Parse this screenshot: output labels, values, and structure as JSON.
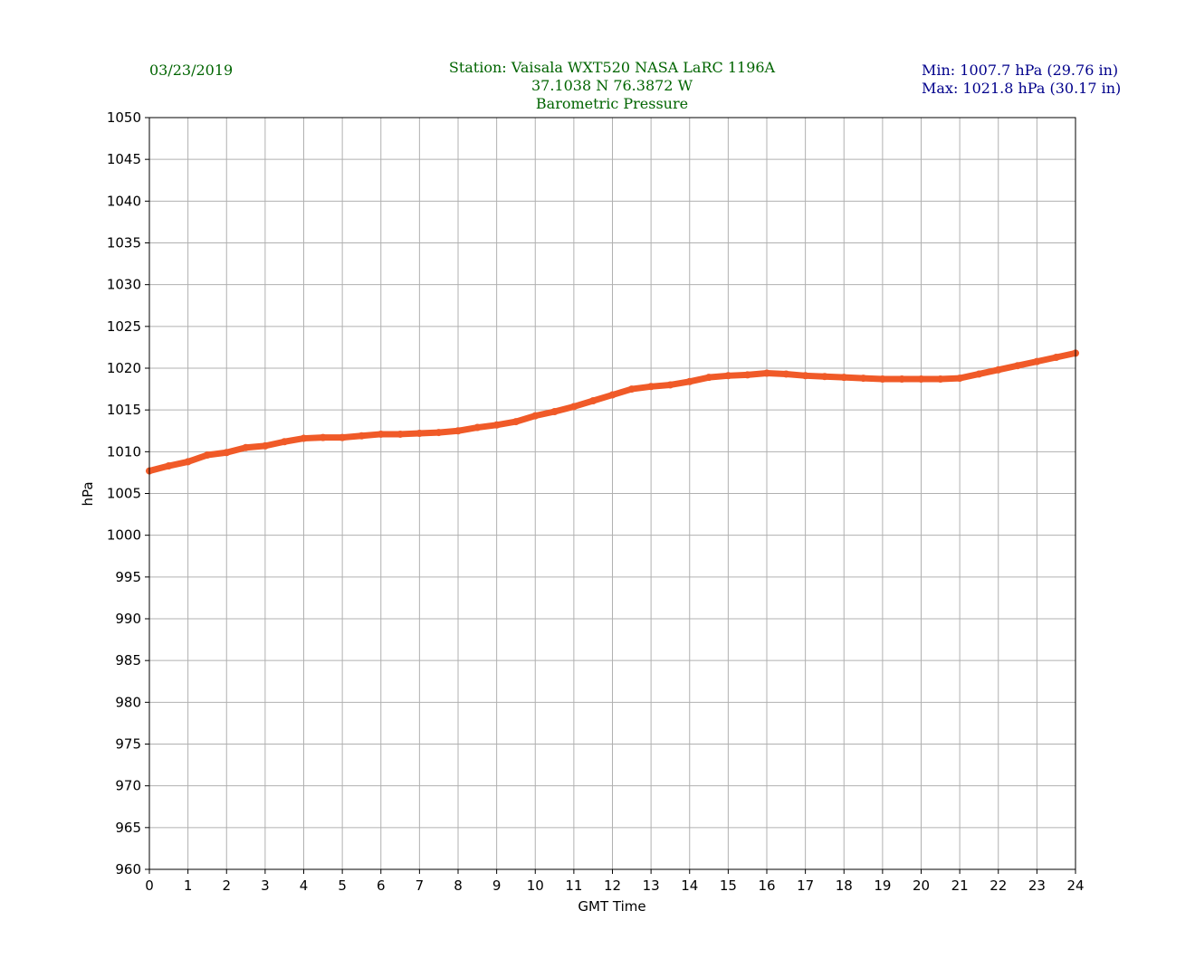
{
  "header": {
    "date": "03/23/2019",
    "station_line": "Station:  Vaisala WXT520  NASA LaRC 1196A",
    "coords_line": "37.1038 N 76.3872 W",
    "parameter_line": "Barometric Pressure",
    "min_line": "Min: 1007.7 hPa (29.76 in)",
    "max_line": "Max: 1021.8 hPa (30.17 in)"
  },
  "colors": {
    "series": "#f05a28",
    "grid": "#b0b0b0",
    "header_green": "#006400",
    "header_blue": "#00008b"
  },
  "chart_data": {
    "type": "line",
    "title": "Barometric Pressure",
    "xlabel": "GMT Time",
    "ylabel": "hPa",
    "xlim": [
      0,
      24
    ],
    "ylim": [
      960,
      1050
    ],
    "xticks": [
      0,
      1,
      2,
      3,
      4,
      5,
      6,
      7,
      8,
      9,
      10,
      11,
      12,
      13,
      14,
      15,
      16,
      17,
      18,
      19,
      20,
      21,
      22,
      23,
      24
    ],
    "yticks": [
      960,
      965,
      970,
      975,
      980,
      985,
      990,
      995,
      1000,
      1005,
      1010,
      1015,
      1020,
      1025,
      1030,
      1035,
      1040,
      1045,
      1050
    ],
    "grid": true,
    "series": [
      {
        "x": [
          0,
          0.5,
          1,
          1.5,
          2,
          2.5,
          3,
          3.5,
          4,
          4.5,
          5,
          5.5,
          6,
          6.5,
          7,
          7.5,
          8,
          8.5,
          9,
          9.5,
          10,
          10.5,
          11,
          11.5,
          12,
          12.5,
          13,
          13.5,
          14,
          14.5,
          15,
          15.5,
          16,
          16.5,
          17,
          17.5,
          18,
          18.5,
          19,
          19.5,
          20,
          20.5,
          21,
          21.5,
          22,
          22.5,
          23,
          23.5,
          24
        ],
        "values": [
          1007.7,
          1008.3,
          1008.8,
          1009.6,
          1009.9,
          1010.5,
          1010.7,
          1011.2,
          1011.6,
          1011.7,
          1011.7,
          1011.9,
          1012.1,
          1012.1,
          1012.2,
          1012.3,
          1012.5,
          1012.9,
          1013.2,
          1013.6,
          1014.3,
          1014.8,
          1015.4,
          1016.1,
          1016.8,
          1017.5,
          1017.8,
          1018.0,
          1018.4,
          1018.9,
          1019.1,
          1019.2,
          1019.4,
          1019.3,
          1019.1,
          1019.0,
          1018.9,
          1018.8,
          1018.7,
          1018.7,
          1018.7,
          1018.7,
          1018.8,
          1019.3,
          1019.8,
          1020.3,
          1020.8,
          1021.3,
          1021.8
        ]
      }
    ]
  }
}
